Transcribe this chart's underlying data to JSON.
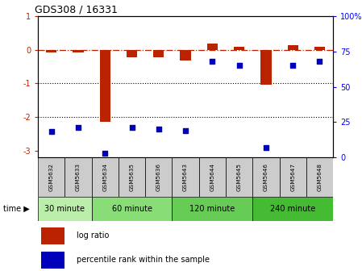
{
  "title": "GDS308 / 16331",
  "samples": [
    "GSM5632",
    "GSM5633",
    "GSM5634",
    "GSM5635",
    "GSM5636",
    "GSM5643",
    "GSM5644",
    "GSM5645",
    "GSM5646",
    "GSM5647",
    "GSM5648"
  ],
  "log_ratio": [
    -0.07,
    -0.07,
    -2.15,
    -0.22,
    -0.22,
    -0.32,
    0.18,
    0.1,
    -1.05,
    0.14,
    0.1
  ],
  "percentile": [
    18,
    21,
    3,
    21,
    20,
    19,
    68,
    65,
    7,
    65,
    68
  ],
  "ylim_left": [
    -3.2,
    1.0
  ],
  "ylim_right": [
    0,
    100
  ],
  "groups": [
    {
      "label": "30 minute",
      "samples": [
        0,
        1
      ],
      "color": "#bbeeaa"
    },
    {
      "label": "60 minute",
      "samples": [
        2,
        3,
        4
      ],
      "color": "#88dd77"
    },
    {
      "label": "120 minute",
      "samples": [
        5,
        6,
        7
      ],
      "color": "#66cc55"
    },
    {
      "label": "240 minute",
      "samples": [
        8,
        9,
        10
      ],
      "color": "#44bb33"
    }
  ],
  "bar_color": "#bb2200",
  "dot_color": "#0000bb",
  "dashed_line_color": "#bb2200",
  "yticks_left": [
    -3,
    -2,
    -1,
    0,
    1
  ],
  "yticks_right": [
    0,
    25,
    50,
    75,
    100
  ],
  "group_header_color": "#cccccc",
  "legend_log_ratio": "log ratio",
  "legend_percentile": "percentile rank within the sample"
}
